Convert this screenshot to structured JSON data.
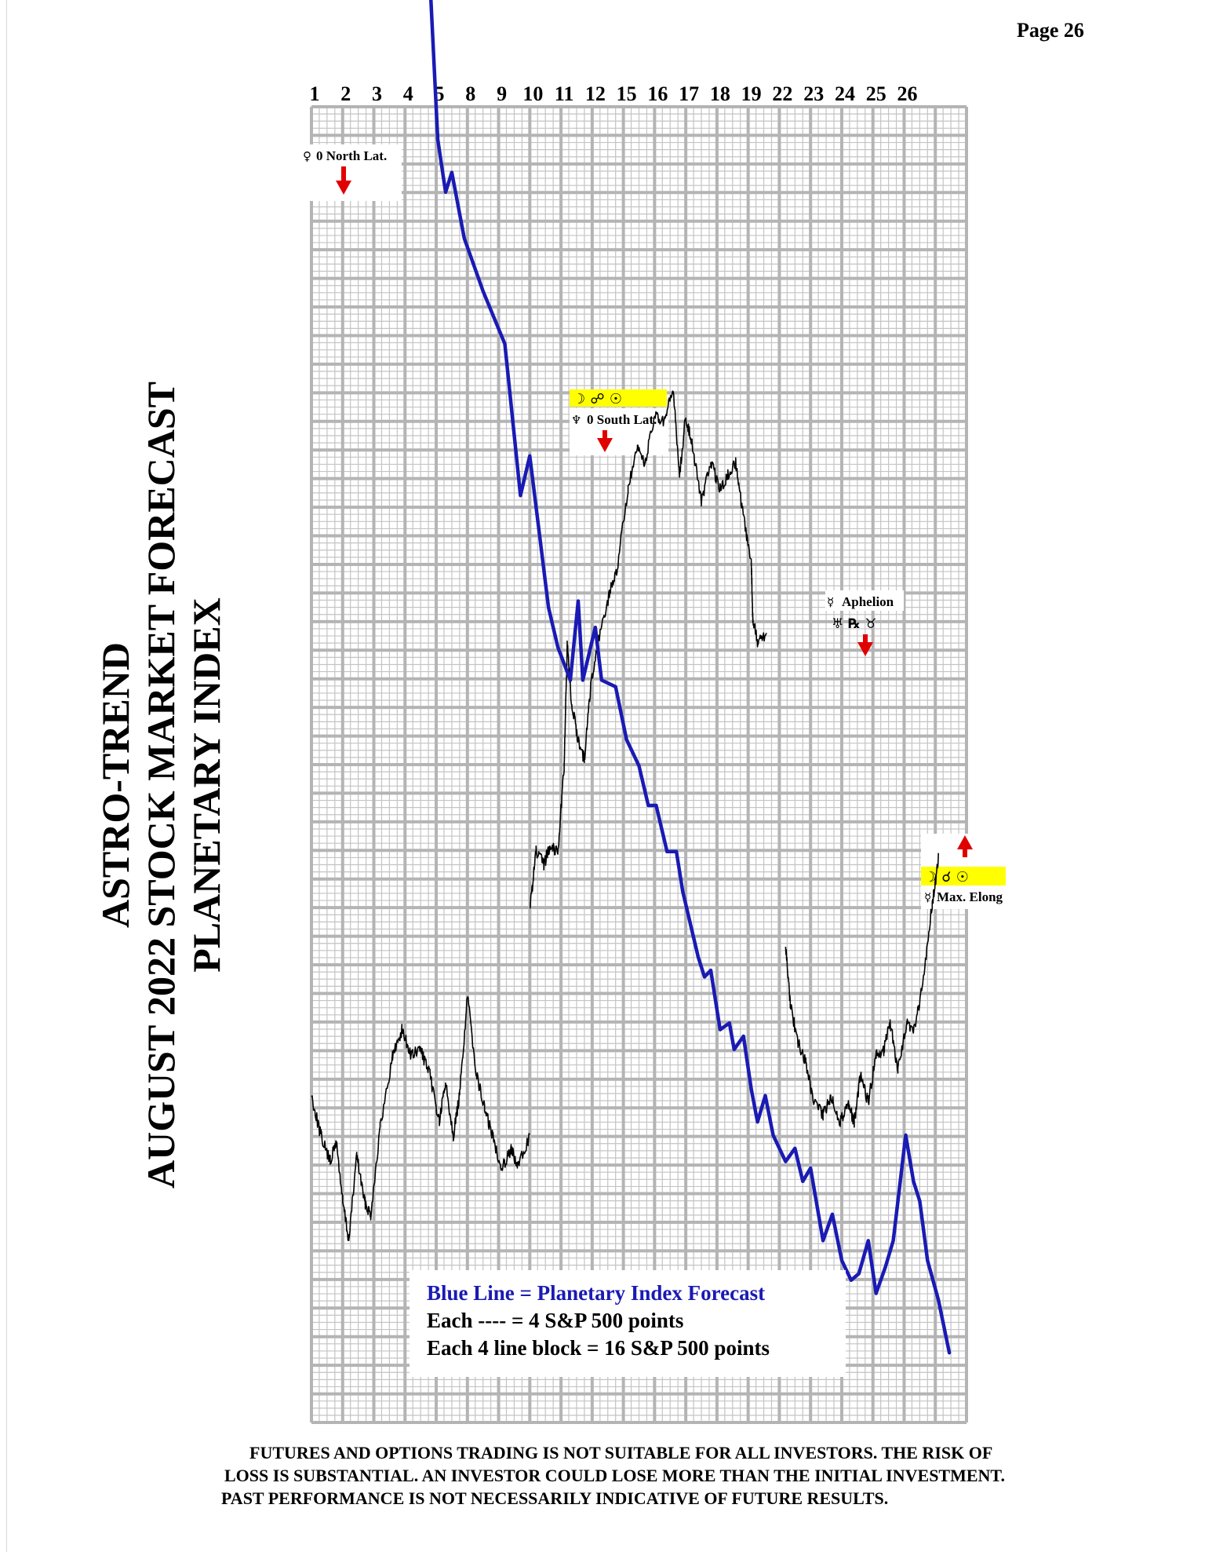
{
  "page": {
    "label": "Page 26"
  },
  "title": {
    "line1": "ASTRO-TREND",
    "line2": "AUGUST 2022  STOCK MARKET FORECAST",
    "line3": "PLANETARY INDEX"
  },
  "legend": {
    "line1": "Blue Line = Planetary Index Forecast",
    "line2": "Each ---- =   4 S&P 500 points",
    "line3": "Each 4 line block =  16  S&P 500 points"
  },
  "disclaimer": {
    "line1": "FUTURES AND OPTIONS TRADING IS NOT SUITABLE FOR ALL INVESTORS.  THE RISK OF",
    "line2": "LOSS IS SUBSTANTIAL.  AN INVESTOR COULD LOSE MORE THAN THE INITIAL INVESTMENT.",
    "line3": "PAST PERFORMANCE IS NOT NECESSARILY INDICATIVE OF FUTURE RESULTS."
  },
  "colors": {
    "forecast": "#1a1ab4",
    "price": "#000000",
    "grid": "#b4b4b4",
    "highlight": "#ffff00",
    "arrow": "#e00000"
  },
  "annotations": [
    {
      "id": "venus-north-lat",
      "glyphs": "♀",
      "text": "0 North Lat.",
      "arrow": "down",
      "day_index": 1
    },
    {
      "id": "moon-opp-sun",
      "glyphs": "☽ ☍ ☉",
      "text": "",
      "arrow": "none",
      "day_index": 10
    },
    {
      "id": "south-lat",
      "glyphs": "♆",
      "text": "0 South Lat.",
      "arrow": "down",
      "day_index": 11
    },
    {
      "id": "mercury-aphelion",
      "glyphs": "☿",
      "text": "Aphelion",
      "arrow": "none",
      "day_index": 23
    },
    {
      "id": "aspects-day24",
      "glyphs": "♅  ℞  ♉",
      "text": "",
      "arrow": "down",
      "day_index": 24
    },
    {
      "id": "moon-conj-sun",
      "glyphs": "☽ ☌ ☉",
      "text": "",
      "arrow": "up",
      "day_index": 29
    },
    {
      "id": "mercury-max-elong",
      "glyphs": "☿",
      "text": "Max. Elong",
      "arrow": "none",
      "day_index": 29
    }
  ],
  "chart_data": {
    "type": "line",
    "x": [
      "1",
      "2",
      "3",
      "4",
      "5",
      "8",
      "9",
      "10",
      "11",
      "12",
      "15",
      "16",
      "17",
      "18",
      "19",
      "22",
      "23",
      "24",
      "25",
      "26"
    ],
    "grid": true,
    "y_units": "S&P 500 points (each grid line = 4, each block = 16)",
    "series": [
      {
        "name": "Planetary Index Forecast",
        "points": [
          [
            0,
            256
          ],
          [
            0.7,
            240
          ],
          [
            1,
            252
          ],
          [
            1.4,
            257
          ],
          [
            1.7,
            250
          ],
          [
            2,
            244
          ],
          [
            2.2,
            232
          ],
          [
            2.35,
            240
          ],
          [
            2.55,
            228
          ],
          [
            2.9,
            250
          ],
          [
            3.15,
            242
          ],
          [
            3.5,
            230
          ],
          [
            3.8,
            220
          ],
          [
            4.05,
            172
          ],
          [
            4.3,
            156
          ],
          [
            4.5,
            162
          ],
          [
            4.9,
            142
          ],
          [
            5.2,
            134
          ],
          [
            5.5,
            126
          ],
          [
            6.2,
            110
          ],
          [
            6.7,
            64
          ],
          [
            7,
            76
          ],
          [
            7.6,
            30
          ],
          [
            7.9,
            18
          ],
          [
            8.3,
            8
          ],
          [
            8.55,
            32
          ],
          [
            8.7,
            8
          ],
          [
            9.1,
            24
          ],
          [
            9.3,
            8
          ],
          [
            9.75,
            6
          ],
          [
            10.1,
            -10
          ],
          [
            10.5,
            -18
          ],
          [
            10.8,
            -30
          ],
          [
            11.05,
            -30
          ],
          [
            11.4,
            -44
          ],
          [
            11.7,
            -44
          ],
          [
            11.9,
            -56
          ],
          [
            12.1,
            -64
          ],
          [
            12.4,
            -76
          ],
          [
            12.6,
            -82
          ],
          [
            12.8,
            -80
          ],
          [
            13.1,
            -98
          ],
          [
            13.4,
            -96
          ],
          [
            13.55,
            -104
          ],
          [
            13.85,
            -100
          ],
          [
            14.1,
            -116
          ],
          [
            14.3,
            -126
          ],
          [
            14.55,
            -118
          ],
          [
            14.8,
            -130
          ],
          [
            15.2,
            -138
          ],
          [
            15.5,
            -134
          ],
          [
            15.75,
            -144
          ],
          [
            16,
            -140
          ],
          [
            16.4,
            -162
          ],
          [
            16.7,
            -154
          ],
          [
            17,
            -168
          ],
          [
            17.3,
            -174
          ],
          [
            17.55,
            -172
          ],
          [
            17.85,
            -162
          ],
          [
            18.1,
            -178
          ],
          [
            18.4,
            -170
          ],
          [
            18.65,
            -162
          ],
          [
            19.05,
            -130
          ],
          [
            19.3,
            -144
          ],
          [
            19.5,
            -150
          ],
          [
            19.75,
            -168
          ],
          [
            20.1,
            -180
          ],
          [
            20.45,
            -196
          ]
        ]
      },
      {
        "name": "",
        "segments": [
          [
            [
              0,
              -118
            ],
            [
              0.3,
              -130
            ],
            [
              0.6,
              -138
            ],
            [
              0.8,
              -132
            ],
            [
              1,
              -150
            ],
            [
              1.2,
              -162
            ],
            [
              1.45,
              -136
            ],
            [
              1.7,
              -150
            ],
            [
              1.9,
              -154
            ],
            [
              2.2,
              -128
            ],
            [
              2.6,
              -106
            ],
            [
              2.9,
              -98
            ],
            [
              3.2,
              -106
            ],
            [
              3.5,
              -104
            ],
            [
              3.8,
              -112
            ],
            [
              4.1,
              -126
            ],
            [
              4.3,
              -114
            ],
            [
              4.55,
              -130
            ],
            [
              4.75,
              -118
            ],
            [
              5,
              -88
            ],
            [
              5.3,
              -112
            ],
            [
              5.55,
              -122
            ],
            [
              5.8,
              -130
            ],
            [
              6.1,
              -140
            ],
            [
              6.4,
              -134
            ],
            [
              6.6,
              -140
            ],
            [
              7,
              -130
            ]
          ],
          [
            [
              7,
              -62
            ],
            [
              7.2,
              -44
            ],
            [
              7.45,
              -48
            ],
            [
              7.65,
              -42
            ],
            [
              7.9,
              -44
            ],
            [
              8.1,
              -18
            ],
            [
              8.2,
              18
            ],
            [
              8.35,
              0
            ],
            [
              8.55,
              -10
            ],
            [
              8.75,
              -16
            ],
            [
              8.95,
              6
            ],
            [
              9.25,
              22
            ],
            [
              9.55,
              34
            ],
            [
              9.8,
              42
            ],
            [
              10.15,
              66
            ],
            [
              10.45,
              78
            ],
            [
              10.7,
              74
            ],
            [
              11,
              88
            ],
            [
              11.3,
              86
            ],
            [
              11.6,
              96
            ],
            [
              11.8,
              70
            ],
            [
              12,
              88
            ],
            [
              12.2,
              80
            ],
            [
              12.5,
              62
            ],
            [
              12.8,
              74
            ],
            [
              13.1,
              66
            ],
            [
              13.35,
              70
            ],
            [
              13.6,
              74
            ],
            [
              13.8,
              60
            ],
            [
              14.1,
              44
            ],
            [
              14.15,
              26
            ],
            [
              14.3,
              20
            ],
            [
              14.6,
              22
            ]
          ],
          [
            [
              15.2,
              -72
            ],
            [
              15.35,
              -90
            ],
            [
              15.6,
              -102
            ],
            [
              15.85,
              -108
            ],
            [
              16.1,
              -120
            ],
            [
              16.4,
              -124
            ],
            [
              16.65,
              -118
            ],
            [
              16.95,
              -126
            ],
            [
              17.2,
              -120
            ],
            [
              17.4,
              -126
            ],
            [
              17.6,
              -112
            ],
            [
              17.85,
              -120
            ],
            [
              18.1,
              -106
            ],
            [
              18.35,
              -104
            ],
            [
              18.55,
              -96
            ],
            [
              18.8,
              -110
            ],
            [
              19.1,
              -96
            ],
            [
              19.35,
              -98
            ],
            [
              19.6,
              -84
            ],
            [
              19.9,
              -60
            ],
            [
              20.1,
              -46
            ]
          ]
        ]
      }
    ]
  }
}
